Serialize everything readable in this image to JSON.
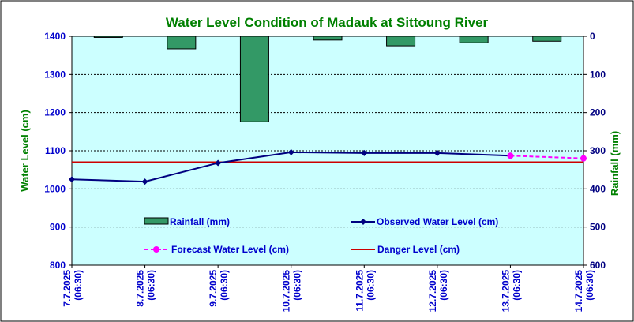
{
  "chart_data": {
    "type": "bar+line",
    "title": "Water Level Condition of Madauk at Sittoung River",
    "categories": [
      [
        "7.7.2025",
        "(06:30)"
      ],
      [
        "8.7.2025",
        "(06:30)"
      ],
      [
        "9.7.2025",
        "(06:30)"
      ],
      [
        "10.7.2025",
        "(06:30)"
      ],
      [
        "11.7.2025",
        "(06:30)"
      ],
      [
        "12.7.2025",
        "(06:30)"
      ],
      [
        "13.7.2025",
        "(06:30)"
      ],
      [
        "14.7.2025",
        "(06:30)"
      ]
    ],
    "y_left": {
      "label": "Water Level (cm)",
      "min": 800,
      "max": 1400,
      "step": 100
    },
    "y_right": {
      "label": "Rainfall (mm)",
      "min": 0,
      "max": 600,
      "step": 100,
      "inverted": true
    },
    "rainfall": {
      "name": "Rainfall (mm)",
      "values": [
        3,
        33,
        224,
        10,
        25,
        17,
        13
      ]
    },
    "observed": {
      "name": "Observed Water Level (cm)",
      "values": [
        1025,
        1019,
        1068,
        1096,
        1094,
        1094,
        1087
      ]
    },
    "forecast": {
      "name": "Forecast Water Level (cm)",
      "start_index": 6,
      "values": [
        1087,
        1080
      ]
    },
    "danger": {
      "name": "Danger Level (cm)",
      "value": 1070
    },
    "grid": true,
    "colors": {
      "plot_bg": "#ccffff",
      "rainfall": "#339966",
      "observed": "#000080",
      "forecast": "#ff00ff",
      "danger": "#cc0000",
      "title": "#008000",
      "axis_left": "#0000cc",
      "axis_right": "#000080",
      "axis_label": "#008000",
      "legend_text": "#0000cc"
    }
  }
}
